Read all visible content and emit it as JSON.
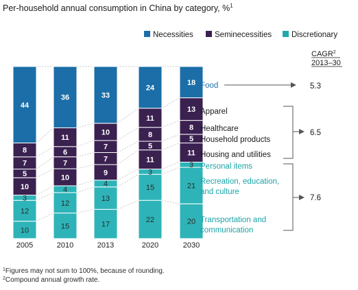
{
  "chart_data": {
    "type": "bar",
    "stacked": true,
    "title": "Per-household annual consumption in China by category, %",
    "title_sup": "1",
    "categories": [
      "2005",
      "2010",
      "2013",
      "2020",
      "2030"
    ],
    "legend": [
      {
        "name": "Necessities",
        "color": "#1b6ea7"
      },
      {
        "name": "Seminecessities",
        "color": "#3c2052"
      },
      {
        "name": "Discretionary",
        "color": "#20a9ad"
      }
    ],
    "series": [
      {
        "name": "Transportation and communication",
        "group": "Discretionary",
        "color": "#2eb4b8",
        "values": [
          10,
          15,
          17,
          22,
          20
        ]
      },
      {
        "name": "Recreation, education, and culture",
        "group": "Discretionary",
        "color": "#2eb4b8",
        "values": [
          12,
          12,
          13,
          15,
          21
        ]
      },
      {
        "name": "Personal items",
        "group": "Discretionary",
        "color": "#2eb4b8",
        "values": [
          3,
          4,
          4,
          3,
          3
        ]
      },
      {
        "name": "Housing and utilities",
        "group": "Seminecessities",
        "color": "#3a2150",
        "values": [
          10,
          10,
          9,
          11,
          11
        ]
      },
      {
        "name": "Household products",
        "group": "Seminecessities",
        "color": "#3a2150",
        "values": [
          5,
          7,
          7,
          5,
          5
        ]
      },
      {
        "name": "Healthcare",
        "group": "Seminecessities",
        "color": "#3a2150",
        "values": [
          7,
          6,
          7,
          8,
          8
        ]
      },
      {
        "name": "Apparel",
        "group": "Seminecessities",
        "color": "#3a2150",
        "values": [
          8,
          11,
          10,
          11,
          13
        ]
      },
      {
        "name": "Food",
        "group": "Necessities",
        "color": "#1b6ea7",
        "values": [
          44,
          36,
          33,
          24,
          18
        ]
      }
    ],
    "category_labels": [
      {
        "text": "Food",
        "style": "food"
      },
      {
        "text": "Apparel",
        "style": "semi"
      },
      {
        "text": "Healthcare",
        "style": "semi"
      },
      {
        "text": "Household products",
        "style": "semi"
      },
      {
        "text": "Housing and utilities",
        "style": "semi"
      },
      {
        "text": "Personal items",
        "style": "disc"
      },
      {
        "text": "Recreation, education,",
        "style": "disc"
      },
      {
        "text": "and culture",
        "style": "disc"
      },
      {
        "text": "Transportation and",
        "style": "disc"
      },
      {
        "text": "communication",
        "style": "disc"
      }
    ],
    "cagr": {
      "header_line1": "CAGR",
      "header_sup": "2",
      "header_line2": "2013–30",
      "values": [
        {
          "group": "Necessities",
          "value": "5.3"
        },
        {
          "group": "Seminecessities",
          "value": "6.5"
        },
        {
          "group": "Discretionary",
          "value": "7.6"
        }
      ]
    },
    "footnotes": [
      {
        "sup": "1",
        "text": "Figures may not sum to 100%, because of rounding."
      },
      {
        "sup": "2",
        "text": "Compound annual growth rate."
      }
    ]
  }
}
